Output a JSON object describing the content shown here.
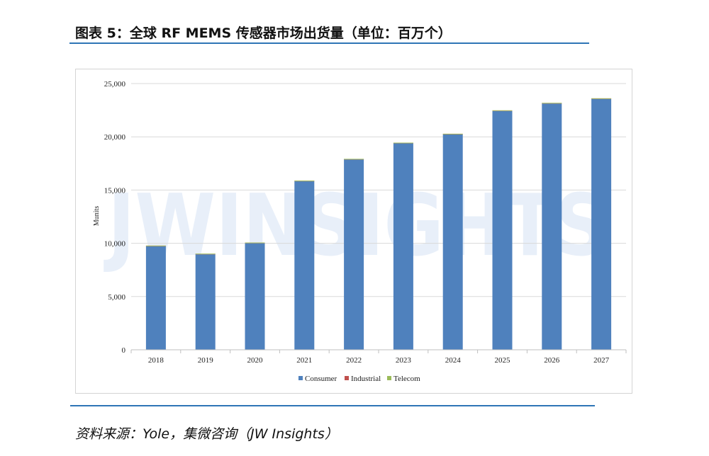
{
  "figure_title": "图表 5：全球 RF MEMS 传感器市场出货量（单位：百万个）",
  "source_note": "资料来源：Yole，集微咨询（JW Insights）",
  "watermark": "JWINSIGHTS",
  "colors": {
    "consumer": "#4f81bd",
    "industrial": "#c0504d",
    "telecom": "#9bbb59",
    "rule": "#2e75b6",
    "gridline": "#d9d9d9"
  },
  "chart_data": {
    "type": "bar",
    "stacked": true,
    "categories": [
      "2018",
      "2019",
      "2020",
      "2021",
      "2022",
      "2023",
      "2024",
      "2025",
      "2026",
      "2027"
    ],
    "series": [
      {
        "name": "Consumer",
        "values": [
          9720,
          8960,
          10000,
          15820,
          17860,
          19380,
          20220,
          22420,
          23120,
          23550
        ]
      },
      {
        "name": "Industrial",
        "values": [
          10,
          10,
          10,
          10,
          10,
          10,
          10,
          10,
          10,
          10
        ]
      },
      {
        "name": "Telecom",
        "values": [
          60,
          60,
          60,
          60,
          60,
          60,
          60,
          60,
          60,
          60
        ]
      }
    ],
    "ylabel": "Munits",
    "ylim": [
      0,
      25000
    ],
    "yticks": [
      0,
      5000,
      10000,
      15000,
      20000,
      25000
    ],
    "ytick_labels": [
      "0",
      "5,000",
      "10,000",
      "15,000",
      "20,000",
      "25,000"
    ],
    "grid": true,
    "legend_position": "bottom"
  }
}
